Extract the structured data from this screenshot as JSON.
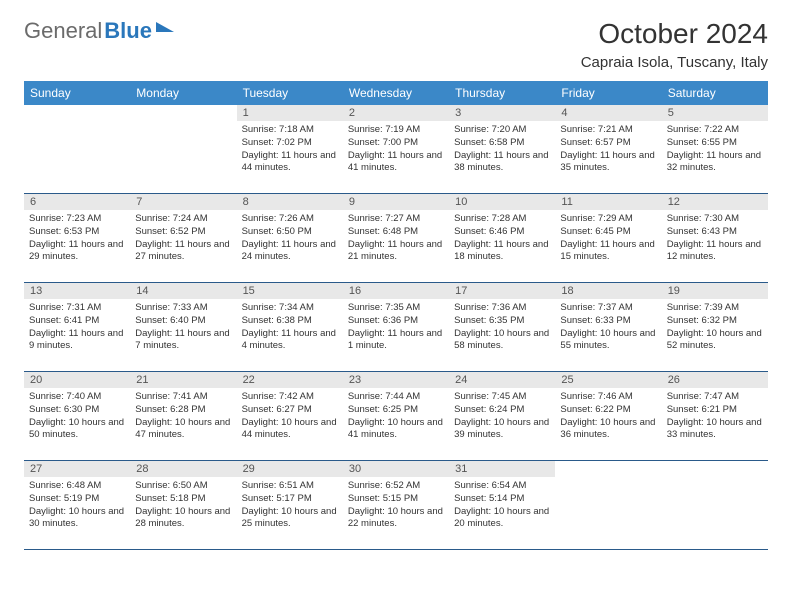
{
  "brand": {
    "part1": "General",
    "part2": "Blue"
  },
  "title": "October 2024",
  "location": "Capraia Isola, Tuscany, Italy",
  "colors": {
    "header_bg": "#3b88c8",
    "row_divider": "#2a5a8a",
    "daynum_bg": "#e8e8e8",
    "text": "#333333",
    "brand_gray": "#6b6b6b",
    "brand_blue": "#2a77bb"
  },
  "weekdays": [
    "Sunday",
    "Monday",
    "Tuesday",
    "Wednesday",
    "Thursday",
    "Friday",
    "Saturday"
  ],
  "weeks": [
    [
      null,
      null,
      {
        "n": "1",
        "sr": "7:18 AM",
        "ss": "7:02 PM",
        "dl": "11 hours and 44 minutes."
      },
      {
        "n": "2",
        "sr": "7:19 AM",
        "ss": "7:00 PM",
        "dl": "11 hours and 41 minutes."
      },
      {
        "n": "3",
        "sr": "7:20 AM",
        "ss": "6:58 PM",
        "dl": "11 hours and 38 minutes."
      },
      {
        "n": "4",
        "sr": "7:21 AM",
        "ss": "6:57 PM",
        "dl": "11 hours and 35 minutes."
      },
      {
        "n": "5",
        "sr": "7:22 AM",
        "ss": "6:55 PM",
        "dl": "11 hours and 32 minutes."
      }
    ],
    [
      {
        "n": "6",
        "sr": "7:23 AM",
        "ss": "6:53 PM",
        "dl": "11 hours and 29 minutes."
      },
      {
        "n": "7",
        "sr": "7:24 AM",
        "ss": "6:52 PM",
        "dl": "11 hours and 27 minutes."
      },
      {
        "n": "8",
        "sr": "7:26 AM",
        "ss": "6:50 PM",
        "dl": "11 hours and 24 minutes."
      },
      {
        "n": "9",
        "sr": "7:27 AM",
        "ss": "6:48 PM",
        "dl": "11 hours and 21 minutes."
      },
      {
        "n": "10",
        "sr": "7:28 AM",
        "ss": "6:46 PM",
        "dl": "11 hours and 18 minutes."
      },
      {
        "n": "11",
        "sr": "7:29 AM",
        "ss": "6:45 PM",
        "dl": "11 hours and 15 minutes."
      },
      {
        "n": "12",
        "sr": "7:30 AM",
        "ss": "6:43 PM",
        "dl": "11 hours and 12 minutes."
      }
    ],
    [
      {
        "n": "13",
        "sr": "7:31 AM",
        "ss": "6:41 PM",
        "dl": "11 hours and 9 minutes."
      },
      {
        "n": "14",
        "sr": "7:33 AM",
        "ss": "6:40 PM",
        "dl": "11 hours and 7 minutes."
      },
      {
        "n": "15",
        "sr": "7:34 AM",
        "ss": "6:38 PM",
        "dl": "11 hours and 4 minutes."
      },
      {
        "n": "16",
        "sr": "7:35 AM",
        "ss": "6:36 PM",
        "dl": "11 hours and 1 minute."
      },
      {
        "n": "17",
        "sr": "7:36 AM",
        "ss": "6:35 PM",
        "dl": "10 hours and 58 minutes."
      },
      {
        "n": "18",
        "sr": "7:37 AM",
        "ss": "6:33 PM",
        "dl": "10 hours and 55 minutes."
      },
      {
        "n": "19",
        "sr": "7:39 AM",
        "ss": "6:32 PM",
        "dl": "10 hours and 52 minutes."
      }
    ],
    [
      {
        "n": "20",
        "sr": "7:40 AM",
        "ss": "6:30 PM",
        "dl": "10 hours and 50 minutes."
      },
      {
        "n": "21",
        "sr": "7:41 AM",
        "ss": "6:28 PM",
        "dl": "10 hours and 47 minutes."
      },
      {
        "n": "22",
        "sr": "7:42 AM",
        "ss": "6:27 PM",
        "dl": "10 hours and 44 minutes."
      },
      {
        "n": "23",
        "sr": "7:44 AM",
        "ss": "6:25 PM",
        "dl": "10 hours and 41 minutes."
      },
      {
        "n": "24",
        "sr": "7:45 AM",
        "ss": "6:24 PM",
        "dl": "10 hours and 39 minutes."
      },
      {
        "n": "25",
        "sr": "7:46 AM",
        "ss": "6:22 PM",
        "dl": "10 hours and 36 minutes."
      },
      {
        "n": "26",
        "sr": "7:47 AM",
        "ss": "6:21 PM",
        "dl": "10 hours and 33 minutes."
      }
    ],
    [
      {
        "n": "27",
        "sr": "6:48 AM",
        "ss": "5:19 PM",
        "dl": "10 hours and 30 minutes."
      },
      {
        "n": "28",
        "sr": "6:50 AM",
        "ss": "5:18 PM",
        "dl": "10 hours and 28 minutes."
      },
      {
        "n": "29",
        "sr": "6:51 AM",
        "ss": "5:17 PM",
        "dl": "10 hours and 25 minutes."
      },
      {
        "n": "30",
        "sr": "6:52 AM",
        "ss": "5:15 PM",
        "dl": "10 hours and 22 minutes."
      },
      {
        "n": "31",
        "sr": "6:54 AM",
        "ss": "5:14 PM",
        "dl": "10 hours and 20 minutes."
      },
      null,
      null
    ]
  ],
  "labels": {
    "sunrise": "Sunrise:",
    "sunset": "Sunset:",
    "daylight": "Daylight:"
  }
}
